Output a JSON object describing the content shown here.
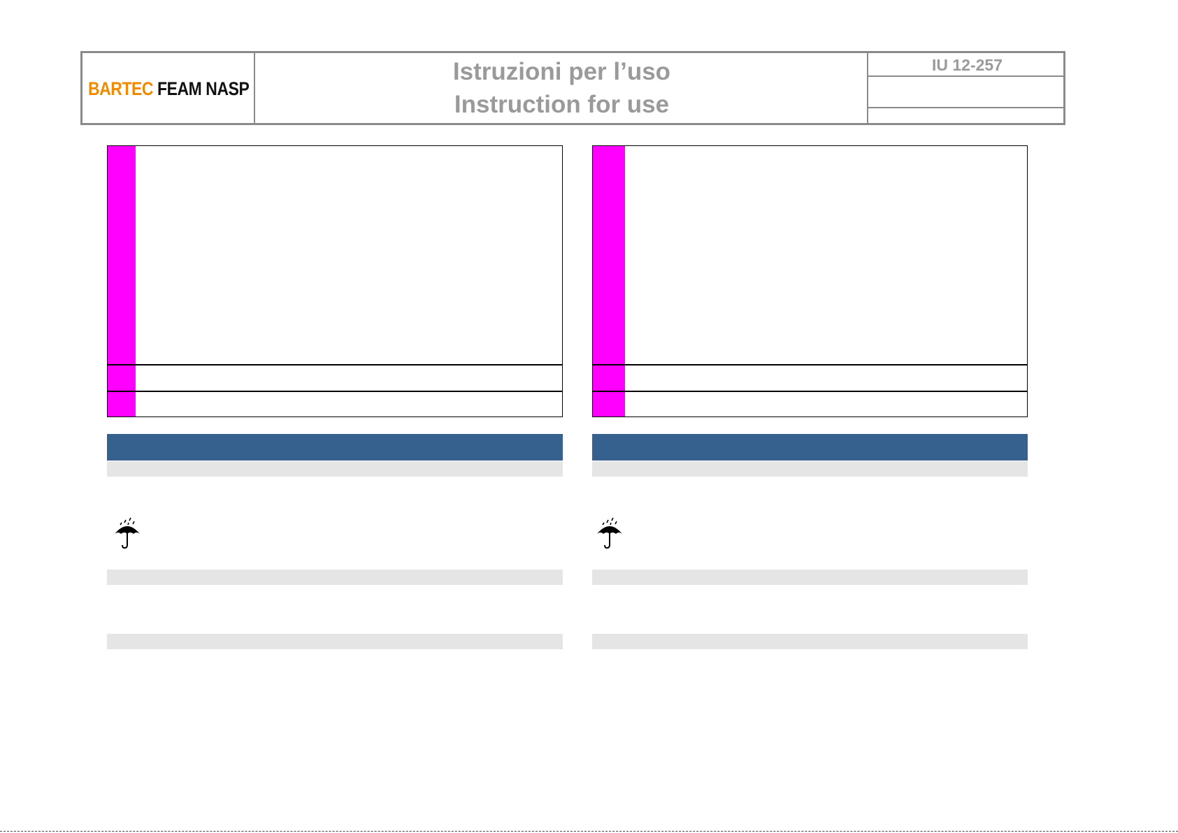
{
  "header": {
    "logo": {
      "brand": "BARTEC",
      "name": "FEAM NASP"
    },
    "title": {
      "italian": "Istruzioni per l’uso",
      "english": "Instruction for use"
    },
    "doc_code": "IU 12-257"
  }
}
